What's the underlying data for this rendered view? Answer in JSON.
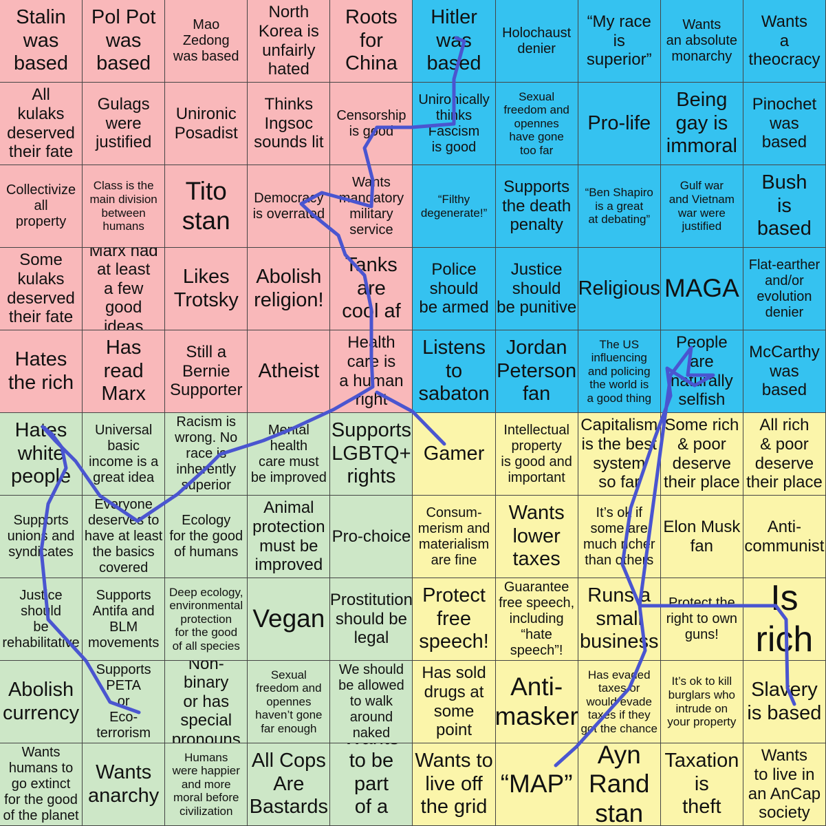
{
  "colors": {
    "red": "#f9b8ba",
    "blue": "#35c2f0",
    "green": "#cde7c7",
    "yellow": "#fbf5aa",
    "ink": "#4a55d0"
  },
  "grid": [
    [
      {
        "text": "Stalin\nwas\nbased",
        "q": "red",
        "s": 4
      },
      {
        "text": "Pol Pot\nwas\nbased",
        "q": "red",
        "s": 4
      },
      {
        "text": "Mao\nZedong\nwas based",
        "q": "red",
        "s": 2
      },
      {
        "text": "North\nKorea is\nunfairly\nhated",
        "q": "red",
        "s": 3
      },
      {
        "text": "Roots\nfor\nChina",
        "q": "red",
        "s": 4
      },
      {
        "text": "Hitler\nwas\nbased",
        "q": "blue",
        "s": 4
      },
      {
        "text": "Holochaust\ndenier",
        "q": "blue",
        "s": 2
      },
      {
        "text": "“My race\nis\nsuperior”",
        "q": "blue",
        "s": 3
      },
      {
        "text": "Wants\nan absolute\nmonarchy",
        "q": "blue",
        "s": 2
      },
      {
        "text": "Wants\na\ntheocracy",
        "q": "blue",
        "s": 3
      }
    ],
    [
      {
        "text": "All\nkulaks\ndeserved\ntheir fate",
        "q": "red",
        "s": 3
      },
      {
        "text": "Gulags\nwere\njustified",
        "q": "red",
        "s": 3
      },
      {
        "text": "Unironic\nPosadist",
        "q": "red",
        "s": 3
      },
      {
        "text": "Thinks\nIngsoc\nsounds lit",
        "q": "red",
        "s": 3
      },
      {
        "text": "Censorship\nis good",
        "q": "red",
        "s": 2
      },
      {
        "text": "Unironically\nthinks\nFascism\nis good",
        "q": "blue",
        "s": 2
      },
      {
        "text": "Sexual\nfreedom and\nopennes\nhave gone\ntoo far",
        "q": "blue",
        "s": 1
      },
      {
        "text": "Pro-life",
        "q": "blue",
        "s": 4
      },
      {
        "text": "Being\ngay is\nimmoral",
        "q": "blue",
        "s": 4
      },
      {
        "text": "Pinochet\nwas\nbased",
        "q": "blue",
        "s": 3
      }
    ],
    [
      {
        "text": "Collectivize\nall\nproperty",
        "q": "red",
        "s": 2
      },
      {
        "text": "Class is the\nmain division\nbetween\nhumans",
        "q": "red",
        "s": 1
      },
      {
        "text": "Tito\nstan",
        "q": "red",
        "s": 5
      },
      {
        "text": "Democracy\nis overrated",
        "q": "red",
        "s": 2
      },
      {
        "text": "Wants\nmandatory\nmilitary\nservice",
        "q": "red",
        "s": 2
      },
      {
        "text": "“Filthy\ndegenerate!”",
        "q": "blue",
        "s": 1
      },
      {
        "text": "Supports\nthe death\npenalty",
        "q": "blue",
        "s": 3
      },
      {
        "text": "“Ben Shapiro\nis a great\nat debating”",
        "q": "blue",
        "s": 1
      },
      {
        "text": "Gulf war\nand Vietnam\nwar were\njustified",
        "q": "blue",
        "s": 1
      },
      {
        "text": "Bush\nis\nbased",
        "q": "blue",
        "s": 4
      }
    ],
    [
      {
        "text": "Some\nkulaks\ndeserved\ntheir fate",
        "q": "red",
        "s": 3
      },
      {
        "text": "Marx had\nat least\na few\ngood ideas",
        "q": "red",
        "s": 3
      },
      {
        "text": "Likes\nTrotsky",
        "q": "red",
        "s": 4
      },
      {
        "text": "Abolish\nreligion!",
        "q": "red",
        "s": 4
      },
      {
        "text": "Tanks\nare\ncool af",
        "q": "red",
        "s": 4
      },
      {
        "text": "Police\nshould\nbe armed",
        "q": "blue",
        "s": 3
      },
      {
        "text": "Justice\nshould\nbe punitive",
        "q": "blue",
        "s": 3
      },
      {
        "text": "Religious",
        "q": "blue",
        "s": 4
      },
      {
        "text": "MAGA",
        "q": "blue",
        "s": 5
      },
      {
        "text": "Flat-earther\nand/or\nevolution\ndenier",
        "q": "blue",
        "s": 2
      }
    ],
    [
      {
        "text": "Hates\nthe rich",
        "q": "red",
        "s": 4
      },
      {
        "text": "Has read\nMarx",
        "q": "red",
        "s": 4
      },
      {
        "text": "Still a\nBernie\nSupporter",
        "q": "red",
        "s": 3
      },
      {
        "text": "Atheist",
        "q": "red",
        "s": 4
      },
      {
        "text": "Health\ncare is\na human\nright",
        "q": "red",
        "s": 3
      },
      {
        "text": "Listens\nto\nsabaton",
        "q": "blue",
        "s": 4
      },
      {
        "text": "Jordan\nPeterson\nfan",
        "q": "blue",
        "s": 4
      },
      {
        "text": "The US\ninfluencing\nand policing\nthe world is\na good thing",
        "q": "blue",
        "s": 1
      },
      {
        "text": "People\nare\nnaturally\nselfish",
        "q": "blue",
        "s": 3
      },
      {
        "text": "McCarthy\nwas\nbased",
        "q": "blue",
        "s": 3
      }
    ],
    [
      {
        "text": "Hates\nwhite\npeople",
        "q": "green",
        "s": 4
      },
      {
        "text": "Universal\nbasic\nincome is a\ngreat idea",
        "q": "green",
        "s": 2
      },
      {
        "text": "Racism is\nwrong. No\nrace is\ninherently\nsuperior",
        "q": "green",
        "s": 2
      },
      {
        "text": "Mental\nhealth\ncare must\nbe improved",
        "q": "green",
        "s": 2
      },
      {
        "text": "Supports\nLGBTQ+\nrights",
        "q": "green",
        "s": 4
      },
      {
        "text": "Gamer",
        "q": "yellow",
        "s": 4
      },
      {
        "text": "Intellectual\nproperty\nis good and\nimportant",
        "q": "yellow",
        "s": 2
      },
      {
        "text": "Capitalism\nis the best\nsystem\nso far",
        "q": "yellow",
        "s": 3
      },
      {
        "text": "Some rich\n& poor\ndeserve\ntheir place",
        "q": "yellow",
        "s": 3
      },
      {
        "text": "All rich\n& poor\ndeserve\ntheir place",
        "q": "yellow",
        "s": 3
      }
    ],
    [
      {
        "text": "Supports\nunions and\nsyndicates",
        "q": "green",
        "s": 2
      },
      {
        "text": "Everyone\ndeserves to\nhave at least\nthe basics\ncovered",
        "q": "green",
        "s": 2
      },
      {
        "text": "Ecology\nfor the good\nof humans",
        "q": "green",
        "s": 2
      },
      {
        "text": "Animal\nprotection\nmust be\nimproved",
        "q": "green",
        "s": 3
      },
      {
        "text": "Pro-choice",
        "q": "green",
        "s": 3
      },
      {
        "text": "Consum-\nmerism and\nmaterialism\nare fine",
        "q": "yellow",
        "s": 2
      },
      {
        "text": "Wants\nlower\ntaxes",
        "q": "yellow",
        "s": 4
      },
      {
        "text": "It’s ok if\nsome are\nmuch richer\nthan others",
        "q": "yellow",
        "s": 2
      },
      {
        "text": "Elon Musk\nfan",
        "q": "yellow",
        "s": 3
      },
      {
        "text": "Anti-\ncommunist",
        "q": "yellow",
        "s": 3
      }
    ],
    [
      {
        "text": "Justice\nshould\nbe\nrehabilitative",
        "q": "green",
        "s": 2
      },
      {
        "text": "Supports\nAntifa and\nBLM\nmovements",
        "q": "green",
        "s": 2
      },
      {
        "text": "Deep ecology,\nenvironmental\nprotection\nfor the good\nof all species",
        "q": "green",
        "s": 1
      },
      {
        "text": "Vegan",
        "q": "green",
        "s": 5
      },
      {
        "text": "Prostitution\nshould be\nlegal",
        "q": "green",
        "s": 3
      },
      {
        "text": "Protect\nfree\nspeech!",
        "q": "yellow",
        "s": 4
      },
      {
        "text": "Guarantee\nfree speech,\nincluding\n“hate\nspeech”!",
        "q": "yellow",
        "s": 2
      },
      {
        "text": "Runs a\nsmall\nbusiness",
        "q": "yellow",
        "s": 4
      },
      {
        "text": "Protect the\nright to own\nguns!",
        "q": "yellow",
        "s": 2
      },
      {
        "text": "Is\nrich",
        "q": "yellow",
        "s": 6
      }
    ],
    [
      {
        "text": "Abolish\ncurrency",
        "q": "green",
        "s": 4
      },
      {
        "text": "Supports\nPETA\nor\nEco-terrorism",
        "q": "green",
        "s": 2
      },
      {
        "text": "Non-binary\nor has\nspecial\npronouns",
        "q": "green",
        "s": 3
      },
      {
        "text": "Sexual\nfreedom and\nopennes\nhaven’t gone\nfar enough",
        "q": "green",
        "s": 1
      },
      {
        "text": "We should\nbe allowed\nto walk\naround\nnaked",
        "q": "green",
        "s": 2
      },
      {
        "text": "Has sold\ndrugs at\nsome point",
        "q": "yellow",
        "s": 3
      },
      {
        "text": "Anti-\nmasker",
        "q": "yellow",
        "s": 5
      },
      {
        "text": "Has evaded\ntaxes or\nwould evade\ntaxes if they\ngot the chance",
        "q": "yellow",
        "s": 1
      },
      {
        "text": "It’s ok to kill\nburglars who\nintrude on\nyour property",
        "q": "yellow",
        "s": 1
      },
      {
        "text": "Slavery\nis based",
        "q": "yellow",
        "s": 4
      }
    ],
    [
      {
        "text": "Wants\nhumans to\ngo extinct\nfor the good\nof the planet",
        "q": "green",
        "s": 2
      },
      {
        "text": "Wants\nanarchy",
        "q": "green",
        "s": 4
      },
      {
        "text": "Humans\nwere happier\nand more\nmoral before\ncivilization",
        "q": "green",
        "s": 1
      },
      {
        "text": "All Cops\nAre\nBastards",
        "q": "green",
        "s": 4
      },
      {
        "text": "Wants\nto be part\nof a gang",
        "q": "green",
        "s": 4
      },
      {
        "text": "Wants to\nlive off\nthe grid",
        "q": "yellow",
        "s": 4
      },
      {
        "text": "“MAP”",
        "q": "yellow",
        "s": 5
      },
      {
        "text": "Ayn\nRand\nstan",
        "q": "yellow",
        "s": 5
      },
      {
        "text": "Taxation\nis\ntheft",
        "q": "yellow",
        "s": 4
      },
      {
        "text": "Wants\nto live in\nan AnCap\nsociety",
        "q": "yellow",
        "s": 3
      }
    ]
  ]
}
